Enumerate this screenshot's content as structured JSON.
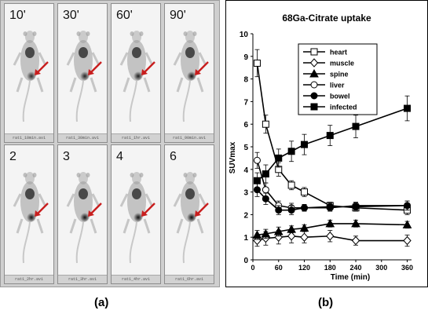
{
  "figure": {
    "panel_a_label": "(a)",
    "panel_b_label": "(b)"
  },
  "scans": [
    {
      "time": "10'",
      "file": "rat1_10min.avi",
      "hot": 0.55
    },
    {
      "time": "30'",
      "file": "rat1_30min.avi",
      "hot": 0.7
    },
    {
      "time": "60'",
      "file": "rat1_1hr.avi",
      "hot": 0.8
    },
    {
      "time": "90'",
      "file": "rat1_90min.avi",
      "hot": 0.95
    },
    {
      "time": "2",
      "file": "rat1_2hr.avi",
      "hot": 0.9
    },
    {
      "time": "3",
      "file": "rat1_3hr.avi",
      "hot": 0.95
    },
    {
      "time": "4",
      "file": "rat1_4hr.avi",
      "hot": 0.95
    },
    {
      "time": "6",
      "file": "rat1_6hr.avi",
      "hot": 1.0
    }
  ],
  "arrow_color": "#c81e1e",
  "chart_data": {
    "type": "line",
    "title": "68Ga-Citrate uptake",
    "xlabel": "Time  (min)",
    "ylabel": "SUVmax",
    "xlim": [
      0,
      370
    ],
    "ylim": [
      0,
      10
    ],
    "xticks": [
      0,
      60,
      120,
      180,
      240,
      300,
      360
    ],
    "yticks": [
      0,
      1,
      2,
      3,
      4,
      5,
      6,
      7,
      8,
      9,
      10
    ],
    "legend_position": "top-right",
    "series": [
      {
        "name": "heart",
        "marker": "square-open",
        "x": [
          10,
          30,
          60,
          90,
          120,
          180,
          240,
          360
        ],
        "y": [
          8.7,
          6.0,
          4.0,
          3.3,
          3.0,
          2.4,
          2.3,
          2.2
        ],
        "err": [
          0.6,
          0.4,
          0.3,
          0.2,
          0.2,
          0.15,
          0.15,
          0.2
        ]
      },
      {
        "name": "muscle",
        "marker": "diamond-open",
        "x": [
          10,
          30,
          60,
          90,
          120,
          180,
          240,
          360
        ],
        "y": [
          0.85,
          0.95,
          1.0,
          1.05,
          1.0,
          1.05,
          0.85,
          0.85
        ],
        "err": [
          0.25,
          0.3,
          0.3,
          0.3,
          0.25,
          0.25,
          0.2,
          0.25
        ]
      },
      {
        "name": "spine",
        "marker": "triangle-filled",
        "x": [
          10,
          30,
          60,
          90,
          120,
          180,
          240,
          360
        ],
        "y": [
          1.1,
          1.15,
          1.25,
          1.35,
          1.4,
          1.6,
          1.6,
          1.55
        ],
        "err": [
          0.2,
          0.2,
          0.2,
          0.15,
          0.15,
          0.15,
          0.15,
          0.15
        ]
      },
      {
        "name": "liver",
        "marker": "circle-open",
        "x": [
          10,
          30,
          60,
          90,
          120,
          180,
          240,
          360
        ],
        "y": [
          4.4,
          3.1,
          2.4,
          2.3,
          2.3,
          2.3,
          2.4,
          2.4
        ],
        "err": [
          0.35,
          0.3,
          0.2,
          0.2,
          0.15,
          0.15,
          0.15,
          0.2
        ]
      },
      {
        "name": "bowel",
        "marker": "circle-filled",
        "x": [
          10,
          30,
          60,
          90,
          120,
          180,
          240,
          360
        ],
        "y": [
          3.1,
          2.7,
          2.2,
          2.2,
          2.3,
          2.35,
          2.35,
          2.4
        ],
        "err": [
          0.3,
          0.25,
          0.2,
          0.2,
          0.15,
          0.15,
          0.15,
          0.2
        ]
      },
      {
        "name": "infected",
        "marker": "square-filled",
        "x": [
          10,
          30,
          60,
          90,
          120,
          180,
          240,
          360
        ],
        "y": [
          3.5,
          3.8,
          4.5,
          4.8,
          5.1,
          5.5,
          5.9,
          6.7
        ],
        "err": [
          0.35,
          0.4,
          0.4,
          0.45,
          0.45,
          0.45,
          0.5,
          0.55
        ]
      }
    ]
  }
}
